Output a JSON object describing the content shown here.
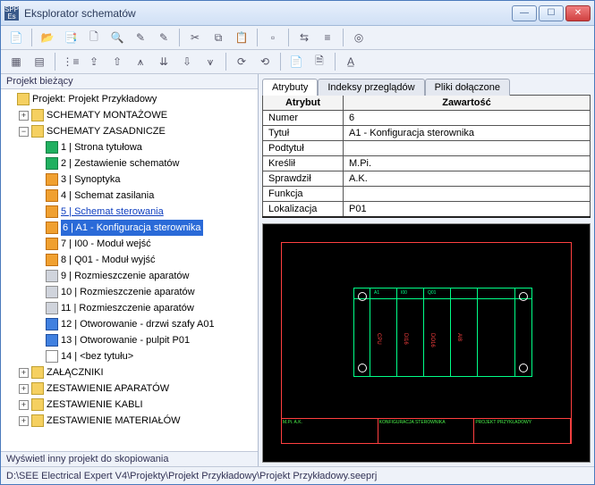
{
  "window": {
    "title": "Eksplorator schematów"
  },
  "left": {
    "header": "Projekt bieżący",
    "root": "Projekt: Projekt Przykładowy",
    "folders": {
      "montazowe": "SCHEMATY MONTAŻOWE",
      "zasadnicze": "SCHEMATY ZASADNICZE",
      "zalaczniki": "ZAŁĄCZNIKI",
      "aparatow": "ZESTAWIENIE APARATÓW",
      "kabli": "ZESTAWIENIE KABLI",
      "materialow": "ZESTAWIENIE MATERIAŁÓW"
    },
    "schemas": [
      {
        "i": "1",
        "t": "Strona tytułowa",
        "c": "green"
      },
      {
        "i": "2",
        "t": "Zestawienie schematów",
        "c": "green"
      },
      {
        "i": "3",
        "t": "Synoptyka",
        "c": "orange"
      },
      {
        "i": "4",
        "t": "Schemat zasilania",
        "c": "orange"
      },
      {
        "i": "5",
        "t": "Schemat sterowania",
        "c": "orange",
        "link": true
      },
      {
        "i": "6",
        "t": "A1 - Konfiguracja sterownika",
        "c": "orange",
        "sel": true
      },
      {
        "i": "7",
        "t": "I00 - Moduł wejść",
        "c": "orange"
      },
      {
        "i": "8",
        "t": "Q01 - Moduł wyjść",
        "c": "orange"
      },
      {
        "i": "9",
        "t": "Rozmieszczenie aparatów",
        "c": "gray"
      },
      {
        "i": "10",
        "t": "Rozmieszczenie aparatów",
        "c": "gray"
      },
      {
        "i": "11",
        "t": "Rozmieszczenie aparatów",
        "c": "gray"
      },
      {
        "i": "12",
        "t": "Otworowanie - drzwi szafy A01",
        "c": "blue"
      },
      {
        "i": "13",
        "t": "Otworowanie - pulpit P01",
        "c": "blue"
      },
      {
        "i": "14",
        "t": "<bez tytułu>",
        "c": "white"
      }
    ],
    "footer": "Wyświetl inny projekt do skopiowania"
  },
  "tabs": {
    "attrs": "Atrybuty",
    "index": "Indeksy przeglądów",
    "files": "Pliki dołączone"
  },
  "table": {
    "h1": "Atrybut",
    "h2": "Zawartość",
    "rows": [
      {
        "k": "Numer",
        "v": "6"
      },
      {
        "k": "Tytuł",
        "v": "A1 - Konfiguracja sterownika"
      },
      {
        "k": "Podtytuł",
        "v": ""
      },
      {
        "k": "Kreślił",
        "v": "M.Pi."
      },
      {
        "k": "Sprawdził",
        "v": "A.K."
      },
      {
        "k": "Funkcja",
        "v": ""
      },
      {
        "k": "Lokalizacja",
        "v": "P01"
      }
    ]
  },
  "status": "D:\\SEE Electrical Expert V4\\Projekty\\Projekt Przykładowy\\Projekt Przykładowy.seeprj",
  "colors": {
    "accent": "#2a6ad8",
    "draw_red": "#ff4040",
    "draw_green": "#00ff88"
  }
}
